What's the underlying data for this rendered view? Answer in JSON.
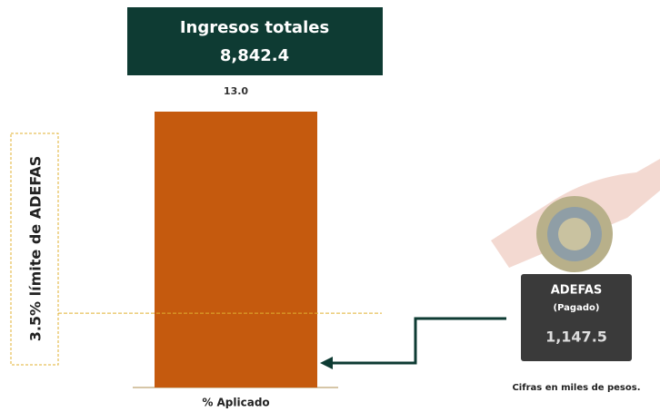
{
  "chart_data": {
    "type": "bar",
    "title": "Ingresos totales",
    "total": "8,842.4",
    "categories": [
      "% Aplicado"
    ],
    "values": [
      13.0
    ],
    "value_labels": [
      "13.0"
    ],
    "color": "#c55a0e",
    "threshold": {
      "value": 3.5,
      "label": "3.5% límite de ADEFAS"
    },
    "callout": {
      "title": "ADEFAS",
      "subtitle": "(Pagado)",
      "amount": "1,147.5"
    },
    "note": "Cifras en miles de pesos."
  }
}
